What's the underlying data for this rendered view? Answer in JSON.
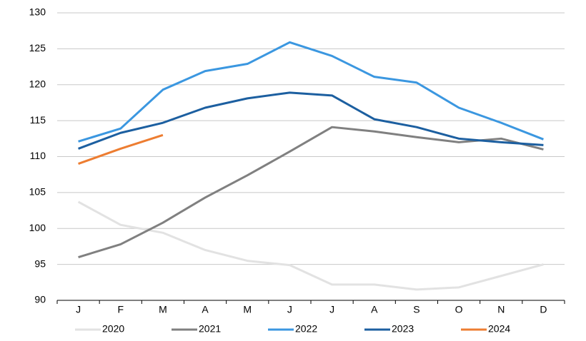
{
  "chart_data": {
    "type": "line",
    "categories": [
      "J",
      "F",
      "M",
      "A",
      "M",
      "J",
      "J",
      "A",
      "S",
      "O",
      "N",
      "D"
    ],
    "series": [
      {
        "name": "2020",
        "color": "#e2e2e2",
        "values": [
          103.7,
          100.5,
          99.4,
          97,
          95.5,
          94.9,
          92.2,
          92.2,
          91.5,
          91.8,
          93.4,
          95
        ]
      },
      {
        "name": "2021",
        "color": "#808080",
        "values": [
          96,
          97.8,
          100.8,
          104.3,
          107.4,
          110.7,
          114.1,
          113.5,
          112.7,
          112,
          112.5,
          111
        ]
      },
      {
        "name": "2022",
        "color": "#3b97e0",
        "values": [
          112.1,
          113.9,
          119.3,
          121.9,
          122.9,
          125.9,
          124,
          121.1,
          120.3,
          116.8,
          114.7,
          112.4
        ]
      },
      {
        "name": "2023",
        "color": "#1c5fa0",
        "values": [
          111.1,
          113.3,
          114.7,
          116.8,
          118.1,
          118.9,
          118.5,
          115.2,
          114.1,
          112.5,
          112,
          111.6
        ]
      },
      {
        "name": "2024",
        "color": "#ed7d31",
        "values": [
          109,
          111.1,
          113,
          null,
          null,
          null,
          null,
          null,
          null,
          null,
          null,
          null
        ]
      }
    ],
    "ylim": [
      90,
      130
    ],
    "yticks": [
      90,
      95,
      100,
      105,
      110,
      115,
      120,
      125,
      130
    ],
    "grid": true
  }
}
